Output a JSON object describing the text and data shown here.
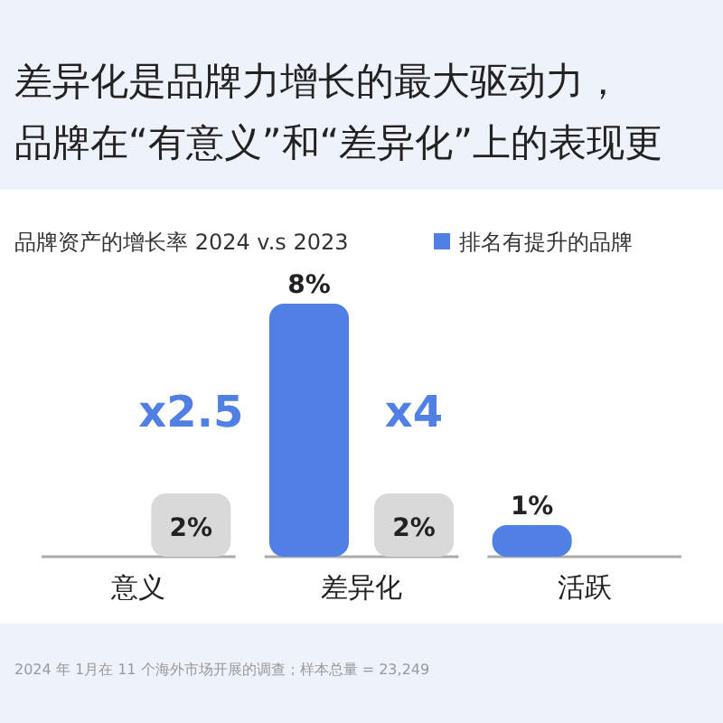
{
  "chart_data": {
    "type": "bar",
    "title": "差异化是品牌力增长的最大驱动力，",
    "subtitle": "品牌在“有意义”和“差异化”上的表现更",
    "xlabel": "品牌资产的增长率 2024 v.s 2023",
    "categories": [
      "意义",
      "差异化",
      "活跃"
    ],
    "series": [
      {
        "name": "排名有提升的品牌",
        "color": "#5080e4",
        "values": [
          null,
          8,
          1
        ],
        "value_labels": [
          null,
          "8%",
          "1%"
        ]
      },
      {
        "color": "#d9d9d9",
        "values": [
          2,
          2,
          null
        ],
        "value_labels": [
          "2%",
          "2%",
          null
        ]
      }
    ],
    "annotations": [
      "x2.5",
      "x4",
      "2024 年 1月在 11 个海外市场开展的调查；样本总量 = 23,249"
    ],
    "legend": "top right"
  }
}
